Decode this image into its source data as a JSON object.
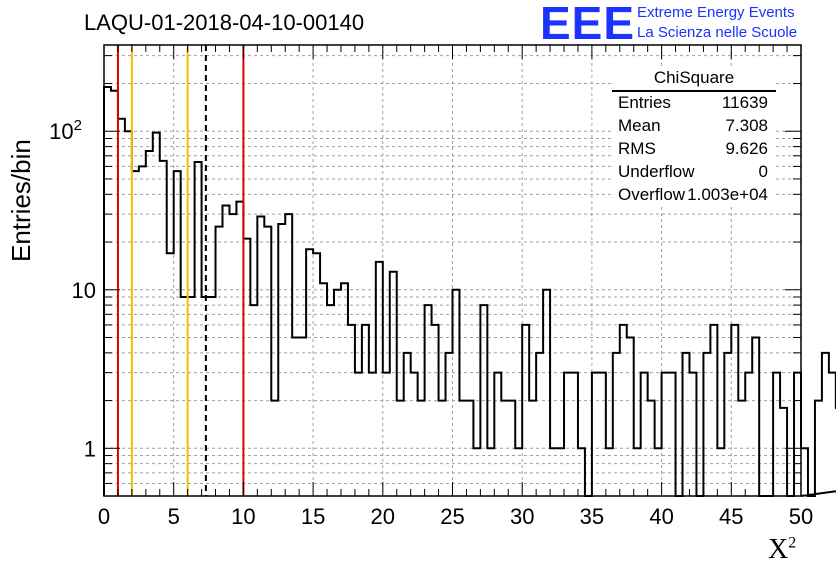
{
  "title": "LAQU-01-2018-04-10-00140",
  "logo": {
    "mark": "EEE",
    "line1": "Extreme Energy Events",
    "line2": "La Scienza nelle Scuole",
    "color": "#1a33ff"
  },
  "stats": {
    "title": "ChiSquare",
    "rows": [
      {
        "label": "Entries",
        "value": "11639"
      },
      {
        "label": "Mean",
        "value": "7.308"
      },
      {
        "label": "RMS",
        "value": "9.626"
      },
      {
        "label": "Underflow",
        "value": "0"
      },
      {
        "label": "Overflow",
        "value": "1.003e+04"
      }
    ]
  },
  "chart_data": {
    "type": "bar",
    "histogram": true,
    "title": "LAQU-01-2018-04-10-00140",
    "xlabel": "X",
    "xlabel_sup": "2",
    "ylabel": "Entries/bin",
    "xlim": [
      0,
      50
    ],
    "ylim": [
      0.5,
      350
    ],
    "yscale": "log",
    "bin_width": 0.5,
    "grid": true,
    "x_ticks": [
      "0",
      "5",
      "10",
      "15",
      "20",
      "25",
      "30",
      "35",
      "40",
      "45",
      "50"
    ],
    "y_ticks": [
      {
        "value": 1,
        "label": "1"
      },
      {
        "value": 10,
        "label": "10"
      },
      {
        "value": 100,
        "label": "10",
        "sup": "2"
      }
    ],
    "values": [
      190,
      180,
      120,
      100,
      56,
      60,
      75,
      98,
      65,
      17,
      56,
      9,
      9,
      64,
      9,
      9,
      25,
      34,
      30,
      36,
      21,
      8,
      29,
      25,
      2,
      26,
      30,
      5,
      5,
      18,
      17,
      11,
      8,
      10,
      11,
      6,
      3,
      6,
      3,
      15,
      3,
      13,
      2,
      4,
      3,
      2,
      8,
      6,
      2,
      4,
      10,
      2,
      2,
      1,
      8,
      1,
      3,
      2,
      2,
      1,
      6,
      2,
      4,
      10,
      1,
      1,
      3,
      3,
      1,
      0,
      3,
      3,
      1,
      4,
      6,
      5,
      1,
      3,
      2,
      1,
      3,
      3,
      0.5,
      4,
      3,
      0.5,
      4,
      6,
      1,
      4,
      6,
      2,
      3,
      5,
      0.5,
      0.5,
      3,
      1.8,
      0.5,
      3,
      1,
      0.5,
      2,
      4,
      3,
      1.8,
      1,
      4,
      2,
      2,
      4,
      4,
      1,
      1.8,
      0.5,
      1,
      1.8,
      4,
      4,
      2,
      1,
      4,
      1,
      0.5,
      4,
      3,
      1,
      1.8,
      1.8,
      1.8,
      1.8,
      1,
      4,
      1.8,
      1.8,
      0.5,
      1.8,
      1,
      1,
      1.8,
      1,
      2,
      1,
      4,
      1.8,
      1.8,
      4,
      1,
      2,
      1,
      2,
      1,
      1.8,
      2,
      1,
      1,
      4,
      1,
      1.8,
      1,
      1.8,
      1,
      1,
      1,
      1.8,
      1,
      1.8,
      1,
      2,
      1,
      1,
      1,
      1.8,
      1,
      2,
      1,
      1,
      1.8,
      1,
      1.8,
      1.8,
      1,
      4,
      2,
      1.8,
      2,
      4,
      3,
      2,
      1.8,
      1.8,
      1.8,
      2,
      1.8
    ],
    "reference_lines": [
      {
        "x": 1,
        "color": "#e00000",
        "style": "solid"
      },
      {
        "x": 2,
        "color": "#f0c000",
        "style": "solid"
      },
      {
        "x": 6,
        "color": "#f0c000",
        "style": "solid"
      },
      {
        "x": 7.308,
        "color": "#000000",
        "style": "dashed"
      },
      {
        "x": 10,
        "color": "#e00000",
        "style": "solid"
      }
    ]
  }
}
